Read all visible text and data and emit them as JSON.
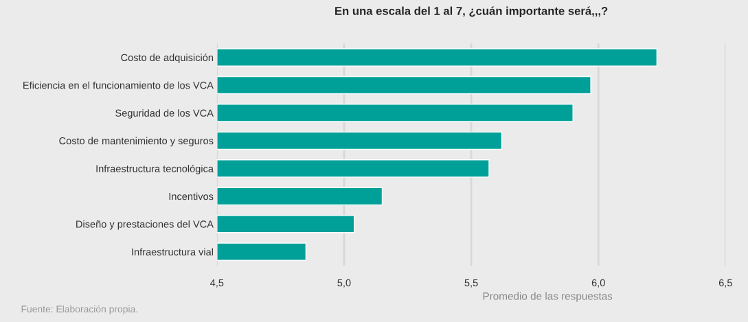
{
  "chart_data": {
    "type": "bar",
    "orientation": "horizontal",
    "title": "En una escala del 1 al 7, ¿cuán importante será,,,?",
    "categories": [
      "Costo de adquisición",
      "Eficiencia en el funcionamiento de los VCA",
      "Seguridad de los VCA",
      "Costo de mantenimiento y seguros",
      "Infraestructura tecnológica",
      "Incentivos",
      "Diseño y prestaciones del VCA",
      "Infraestructura vial"
    ],
    "values": [
      6.23,
      5.97,
      5.9,
      5.62,
      5.57,
      5.15,
      5.04,
      4.85
    ],
    "color": "#00a098",
    "xlim": [
      4.5,
      6.5
    ],
    "xticks": [
      {
        "value": 4.5,
        "label": "4,5"
      },
      {
        "value": 5.0,
        "label": "5,0"
      },
      {
        "value": 5.5,
        "label": "5,5"
      },
      {
        "value": 6.0,
        "label": "6,0"
      },
      {
        "value": 6.5,
        "label": "6,5"
      }
    ],
    "xlabel": "Promedio de las respuestas",
    "grid": "x",
    "annotations": [
      "Fuente: Elaboración propia."
    ]
  }
}
